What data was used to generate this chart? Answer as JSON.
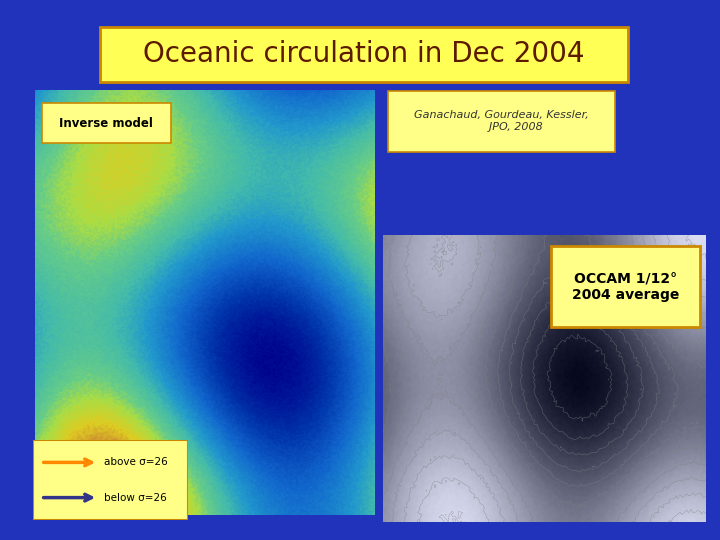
{
  "bg_color": "#2233bb",
  "title_text": "Oceanic circulation in Dec 2004",
  "title_bg": "#ffff55",
  "title_text_color": "#5c1a00",
  "title_border_color": "#cc8800",
  "title_fontsize": 20,
  "title_font": "DejaVu Sans",
  "left_panel_label": "Inverse model",
  "left_panel_label_bg": "#ffff88",
  "left_panel_label_border": "#cc8800",
  "ref_box_text": "Ganachaud, Gourdeau, Kessler,\n        JPO, 2008",
  "ref_box_bg": "#ffff88",
  "ref_box_border": "#cc8800",
  "ref_text_color": "#333333",
  "ref_fontsize": 8,
  "occam_box_text": "OCCAM 1/12°\n2004 average",
  "occam_box_bg": "#ffff88",
  "occam_box_border": "#cc8800",
  "occam_text_color": "#000000",
  "occam_fontsize": 10,
  "legend_bg": "#ffff88",
  "legend_border": "#cc8800",
  "above_sigma_color": "#ff8800",
  "below_sigma_color": "#333388"
}
